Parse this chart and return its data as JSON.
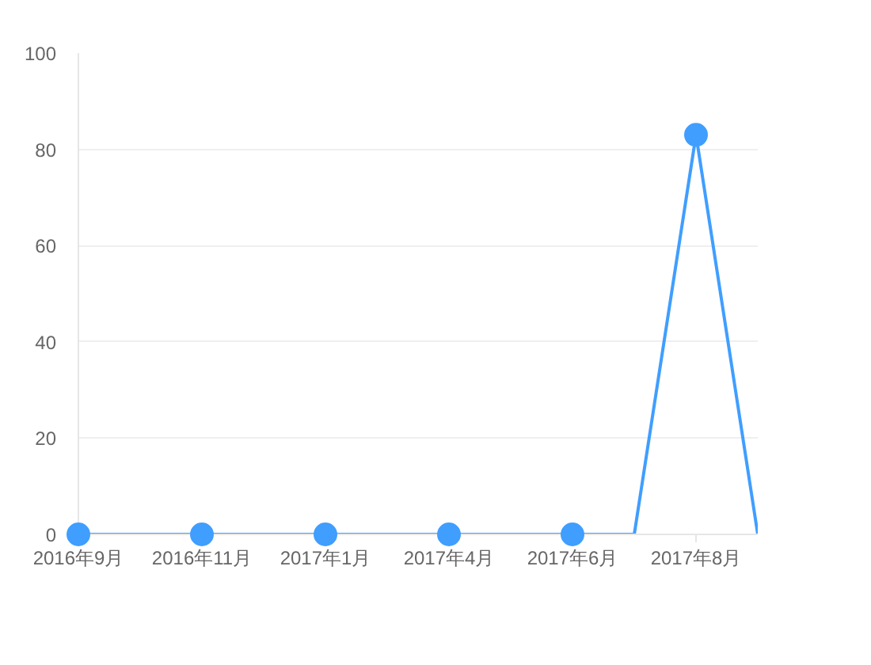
{
  "chart_data": {
    "type": "line",
    "categories": [
      "2016年9月",
      null,
      "2016年11月",
      null,
      "2017年1月",
      null,
      "2017年4月",
      null,
      "2017年6月",
      null,
      "2017年8月",
      null
    ],
    "values": [
      0,
      0,
      0,
      0,
      0,
      0,
      0,
      0,
      0,
      0,
      83,
      0
    ],
    "color": "#409eff",
    "ylim": [
      0,
      100
    ],
    "yticks": [
      0,
      20,
      40,
      60,
      80,
      100
    ],
    "grid": "y",
    "marker": "circle",
    "line_style": "solid"
  }
}
